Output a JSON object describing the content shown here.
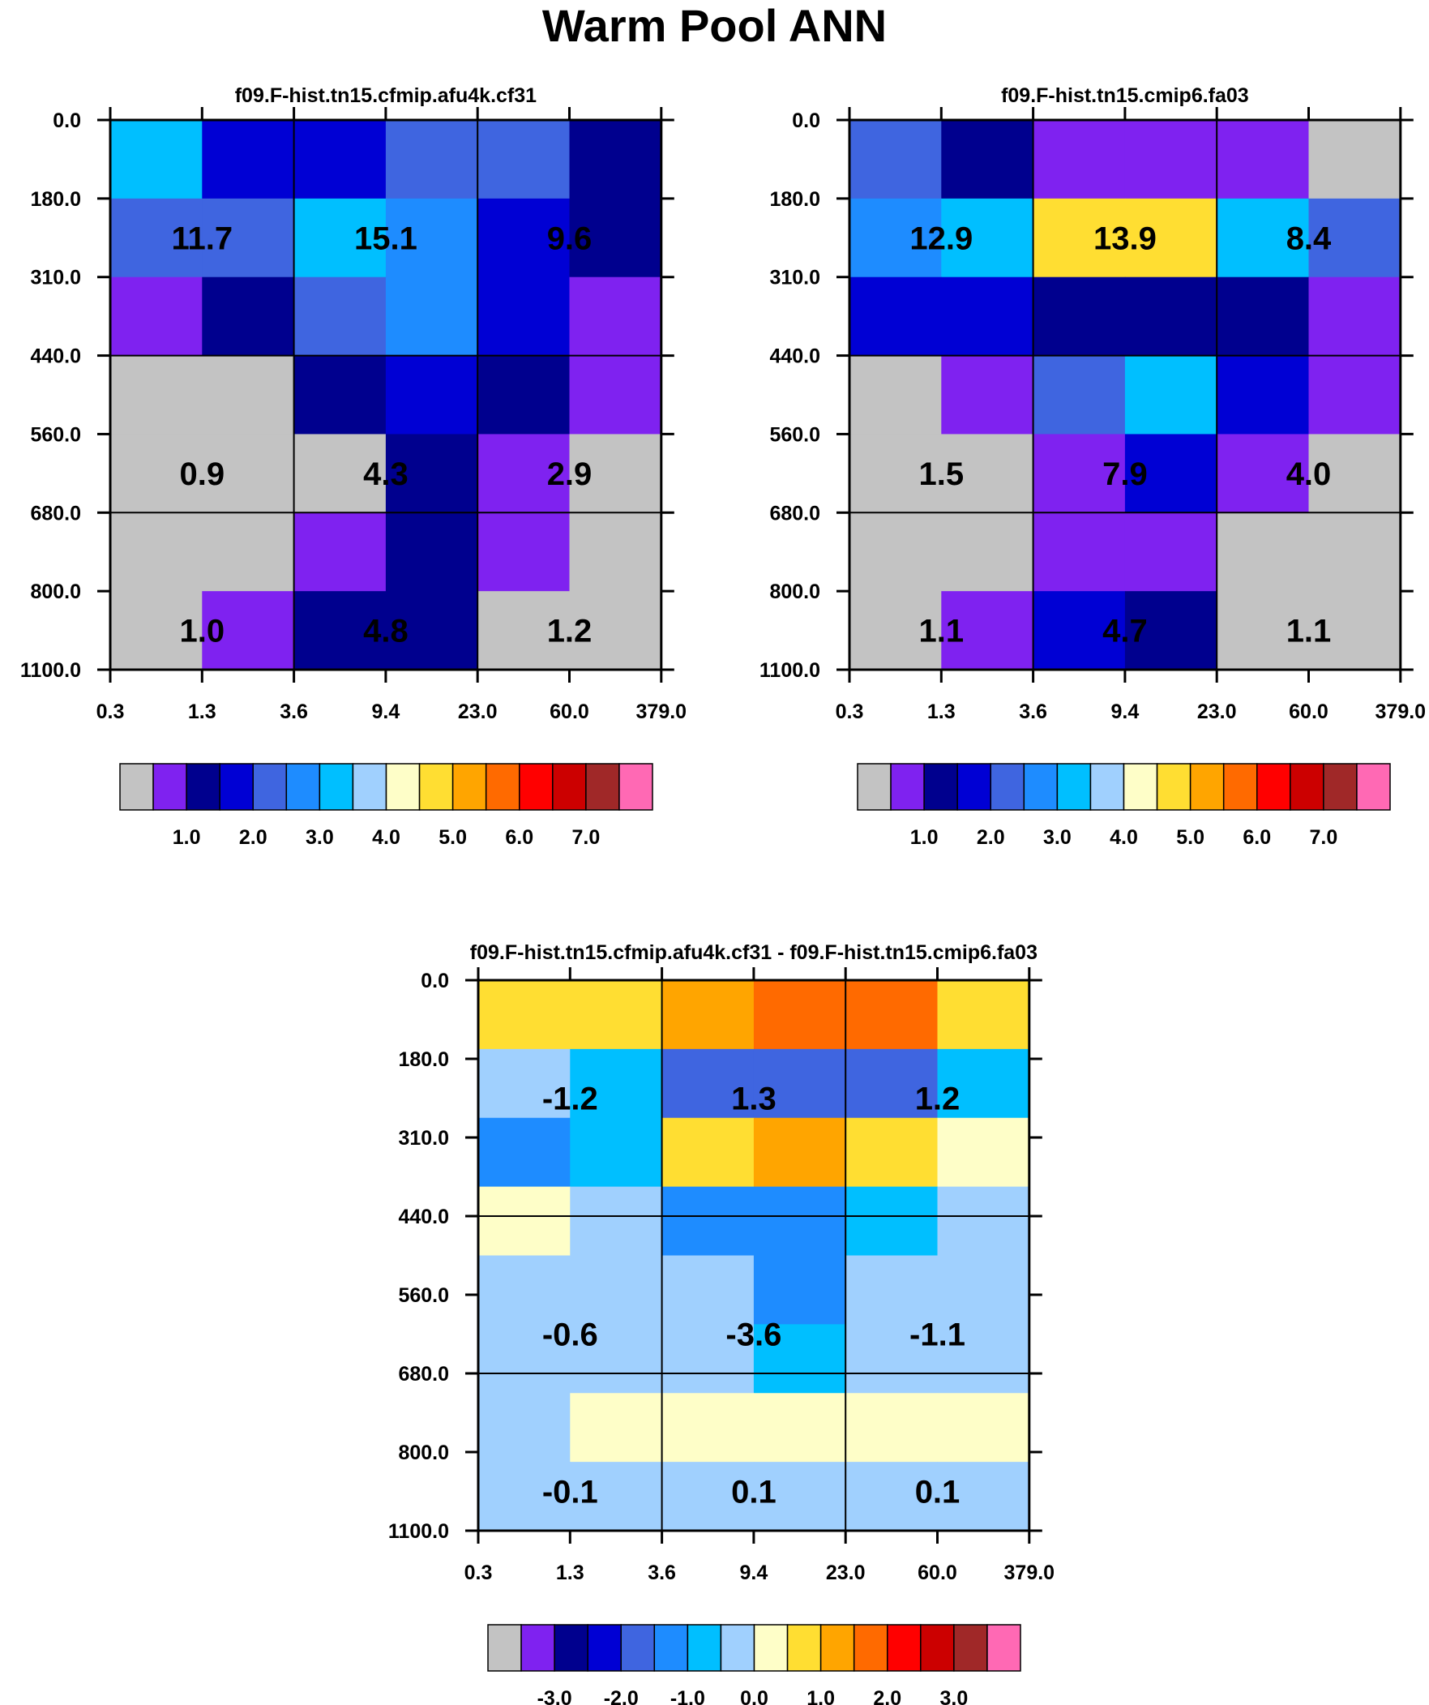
{
  "title": "Warm Pool ANN",
  "colors": {
    "seq": [
      "#c3c3c3",
      "#7f22f0",
      "#00008e",
      "#0000d4",
      "#3f65e0",
      "#1e8cff",
      "#00bfff",
      "#a0d0fe",
      "#fefec8",
      "#ffde32",
      "#ffa500",
      "#ff6a00",
      "#ff0000",
      "#cc0000",
      "#a02828",
      "#ff69b4"
    ],
    "diff": [
      "#c3c3c3",
      "#7f22f0",
      "#00008e",
      "#0000d4",
      "#3f65e0",
      "#1e8cff",
      "#00bfff",
      "#a0d0fe",
      "#fefec8",
      "#ffde32",
      "#ffa500",
      "#ff6a00",
      "#ff0000",
      "#cc0000",
      "#a02828",
      "#ff69b4"
    ]
  },
  "chart_data": [
    {
      "type": "heatmap",
      "title": "f09.F-hist.tn15.cfmip.afu4k.cf31",
      "x_ticks": [
        "0.3",
        "1.3",
        "3.6",
        "9.4",
        "23.0",
        "60.0",
        "379.0"
      ],
      "y_ticks": [
        "0.0",
        "180.0",
        "310.0",
        "440.0",
        "560.0",
        "680.0",
        "800.0",
        "1100.0"
      ],
      "colorbar_labels": [
        "1.0",
        "2.0",
        "3.0",
        "4.0",
        "5.0",
        "6.0",
        "7.0"
      ],
      "cells": [
        [
          6,
          3,
          3,
          4,
          4,
          2
        ],
        [
          4,
          4,
          6,
          5,
          3,
          2
        ],
        [
          1,
          2,
          4,
          5,
          3,
          1
        ],
        [
          0,
          0,
          2,
          3,
          2,
          1
        ],
        [
          0,
          0,
          0,
          2,
          1,
          0
        ],
        [
          0,
          0,
          1,
          2,
          1,
          0
        ],
        [
          0,
          1,
          2,
          2,
          0,
          0
        ]
      ],
      "group_sums": [
        {
          "label": "11.7",
          "row": 1,
          "col": 0
        },
        {
          "label": "15.1",
          "row": 1,
          "col": 1
        },
        {
          "label": "9.6",
          "row": 1,
          "col": 2
        },
        {
          "label": "0.9",
          "row": 4,
          "col": 0
        },
        {
          "label": "4.3",
          "row": 4,
          "col": 1
        },
        {
          "label": "2.9",
          "row": 4,
          "col": 2
        },
        {
          "label": "1.0",
          "row": 6,
          "col": 0
        },
        {
          "label": "4.8",
          "row": 6,
          "col": 1
        },
        {
          "label": "1.2",
          "row": 6,
          "col": 2
        }
      ]
    },
    {
      "type": "heatmap",
      "title": "f09.F-hist.tn15.cmip6.fa03",
      "x_ticks": [
        "0.3",
        "1.3",
        "3.6",
        "9.4",
        "23.0",
        "60.0",
        "379.0"
      ],
      "y_ticks": [
        "0.0",
        "180.0",
        "310.0",
        "440.0",
        "560.0",
        "680.0",
        "800.0",
        "1100.0"
      ],
      "colorbar_labels": [
        "1.0",
        "2.0",
        "3.0",
        "4.0",
        "5.0",
        "6.0",
        "7.0"
      ],
      "cells": [
        [
          4,
          2,
          1,
          1,
          1,
          0
        ],
        [
          5,
          6,
          9,
          9,
          6,
          4
        ],
        [
          3,
          3,
          2,
          2,
          2,
          1
        ],
        [
          0,
          1,
          4,
          6,
          3,
          1
        ],
        [
          0,
          0,
          1,
          3,
          1,
          0
        ],
        [
          0,
          0,
          1,
          1,
          0,
          0
        ],
        [
          0,
          1,
          3,
          2,
          0,
          0
        ]
      ],
      "group_sums": [
        {
          "label": "12.9",
          "row": 1,
          "col": 0
        },
        {
          "label": "13.9",
          "row": 1,
          "col": 1
        },
        {
          "label": "8.4",
          "row": 1,
          "col": 2
        },
        {
          "label": "1.5",
          "row": 4,
          "col": 0
        },
        {
          "label": "7.9",
          "row": 4,
          "col": 1
        },
        {
          "label": "4.0",
          "row": 4,
          "col": 2
        },
        {
          "label": "1.1",
          "row": 6,
          "col": 0
        },
        {
          "label": "4.7",
          "row": 6,
          "col": 1
        },
        {
          "label": "1.1",
          "row": 6,
          "col": 2
        }
      ]
    },
    {
      "type": "heatmap",
      "title": "f09.F-hist.tn15.cfmip.afu4k.cf31 - f09.F-hist.tn15.cmip6.fa03",
      "x_ticks": [
        "0.3",
        "1.3",
        "3.6",
        "9.4",
        "23.0",
        "60.0",
        "379.0"
      ],
      "y_ticks": [
        "0.0",
        "180.0",
        "310.0",
        "440.0",
        "560.0",
        "680.0",
        "800.0",
        "1100.0"
      ],
      "colorbar_labels": [
        "-3.0",
        "-2.0",
        "-1.0",
        "0.0",
        "1.0",
        "2.0",
        "3.0"
      ],
      "cells": [
        [
          9,
          9,
          10,
          11,
          11,
          9
        ],
        [
          7,
          6,
          4,
          4,
          4,
          6
        ],
        [
          5,
          6,
          9,
          10,
          9,
          8
        ],
        [
          8,
          7,
          5,
          5,
          6,
          7
        ],
        [
          7,
          7,
          7,
          5,
          7,
          7
        ],
        [
          7,
          7,
          7,
          6,
          7,
          7
        ],
        [
          7,
          8,
          8,
          8,
          8,
          8
        ],
        [
          7,
          7,
          7,
          7,
          7,
          7
        ]
      ],
      "group_sums": [
        {
          "label": "-1.2",
          "row": 1,
          "col": 0
        },
        {
          "label": "1.3",
          "row": 1,
          "col": 1
        },
        {
          "label": "1.2",
          "row": 1,
          "col": 2
        },
        {
          "label": "-0.6",
          "row": 4,
          "col": 0
        },
        {
          "label": "-3.6",
          "row": 4,
          "col": 1
        },
        {
          "label": "-1.1",
          "row": 4,
          "col": 2
        },
        {
          "label": "-0.1",
          "row": 6,
          "col": 0
        },
        {
          "label": "0.1",
          "row": 6,
          "col": 1
        },
        {
          "label": "0.1",
          "row": 6,
          "col": 2
        }
      ]
    }
  ]
}
